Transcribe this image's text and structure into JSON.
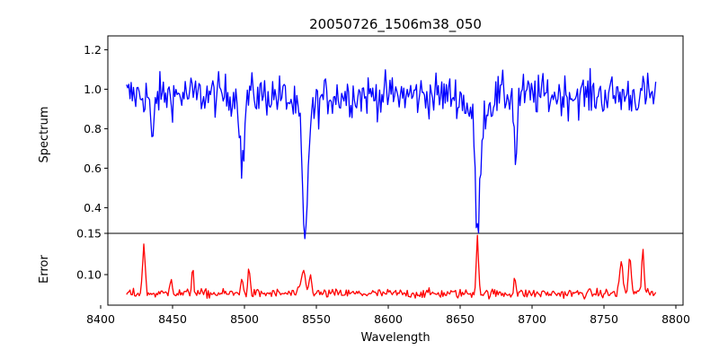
{
  "chart_data": {
    "type": "line",
    "title": "20050726_1506m38_050",
    "xlabel": "Wavelength",
    "xlim": [
      8405,
      8805
    ],
    "xticks": [
      8400,
      8450,
      8500,
      8550,
      8600,
      8650,
      8700,
      8750,
      8800
    ],
    "x_start": 8418,
    "x_end": 8786,
    "x_step": 0.8,
    "panels": [
      {
        "name": "spectrum",
        "ylabel": "Spectrum",
        "ylim": [
          0.27,
          1.27
        ],
        "yticks": [
          0.4,
          0.6,
          0.8,
          1.0,
          1.2
        ],
        "ytick_labels": [
          "0.4",
          "0.6",
          "0.8",
          "1.0",
          "1.2"
        ],
        "color": "#0000ff",
        "baseline": 0.97,
        "noise": 0.075,
        "absorption_lines": [
          {
            "center": 8436,
            "depth": 0.28,
            "width": 1.0
          },
          {
            "center": 8498.5,
            "depth": 0.38,
            "width": 1.4
          },
          {
            "center": 8542.1,
            "depth": 0.66,
            "width": 1.6
          },
          {
            "center": 8662.2,
            "depth": 0.6,
            "width": 1.5
          },
          {
            "center": 8688.6,
            "depth": 0.33,
            "width": 1.0
          }
        ]
      },
      {
        "name": "error",
        "ylabel": "Error",
        "ylim": [
          0.063,
          0.15
        ],
        "yticks": [
          0.1,
          0.15
        ],
        "ytick_labels": [
          "0.10",
          "0.15"
        ],
        "color": "#ff0000",
        "baseline": 0.077,
        "noise": 0.004,
        "emission_peaks": [
          {
            "center": 8430,
            "height": 0.059,
            "width": 0.9
          },
          {
            "center": 8449,
            "height": 0.022,
            "width": 0.8
          },
          {
            "center": 8464,
            "height": 0.032,
            "width": 0.7
          },
          {
            "center": 8498,
            "height": 0.018,
            "width": 0.8
          },
          {
            "center": 8503,
            "height": 0.033,
            "width": 0.7
          },
          {
            "center": 8541,
            "height": 0.026,
            "width": 1.5
          },
          {
            "center": 8546,
            "height": 0.02,
            "width": 1.0
          },
          {
            "center": 8662,
            "height": 0.07,
            "width": 0.8
          },
          {
            "center": 8688,
            "height": 0.02,
            "width": 0.7
          },
          {
            "center": 8762,
            "height": 0.036,
            "width": 1.2
          },
          {
            "center": 8768,
            "height": 0.046,
            "width": 0.9
          },
          {
            "center": 8777,
            "height": 0.055,
            "width": 0.8
          }
        ]
      }
    ]
  }
}
